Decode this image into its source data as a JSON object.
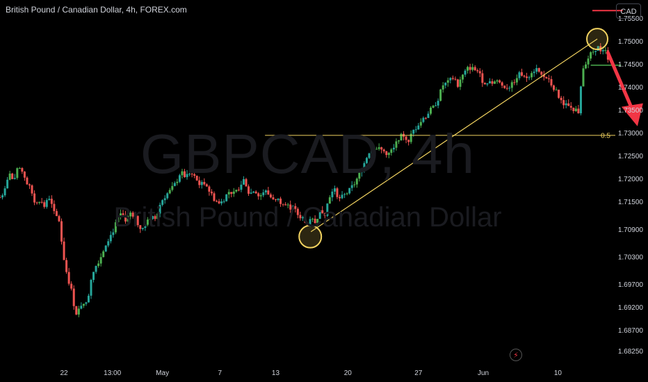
{
  "header": {
    "title": "British Pound / Canadian Dollar, 4h, FOREX.com",
    "currency_badge": "CAD"
  },
  "watermark": {
    "symbol": "GBPCAD, 4h",
    "name": "British Pound / Canadian Dollar"
  },
  "icons": {
    "alert": "lightning-icon"
  },
  "colors": {
    "up": "#26a69a",
    "up_bright": "#4caf50",
    "down": "#ef5350",
    "fib": "#f2d360",
    "arrow": "#f23645",
    "background": "#000000"
  },
  "chart_data": {
    "type": "candlestick",
    "symbol": "GBPCAD",
    "timeframe": "4h",
    "ylim": [
      1.68,
      1.759
    ],
    "y_ticks": [
      "1.75500",
      "1.75000",
      "1.74500",
      "1.74000",
      "1.73500",
      "1.73000",
      "1.72500",
      "1.72000",
      "1.71500",
      "1.70900",
      "1.70300",
      "1.69700",
      "1.69200",
      "1.68700",
      "1.68250"
    ],
    "x_ticks": [
      "22",
      "13:00",
      "May",
      "7",
      "13",
      "20",
      "27",
      "Jun",
      "10"
    ],
    "price_path": [
      [
        0,
        1.716
      ],
      [
        6,
        1.7175
      ],
      [
        12,
        1.7215
      ],
      [
        17,
        1.719
      ],
      [
        22,
        1.7225
      ],
      [
        28,
        1.7215
      ],
      [
        33,
        1.719
      ],
      [
        38,
        1.7175
      ],
      [
        42,
        1.715
      ],
      [
        48,
        1.7155
      ],
      [
        54,
        1.714
      ],
      [
        60,
        1.716
      ],
      [
        66,
        1.7125
      ],
      [
        72,
        1.711
      ],
      [
        77,
        1.7035
      ],
      [
        82,
        1.699
      ],
      [
        88,
        1.695
      ],
      [
        92,
        1.6905
      ],
      [
        96,
        1.6915
      ],
      [
        101,
        1.6935
      ],
      [
        106,
        1.6925
      ],
      [
        112,
        1.6995
      ],
      [
        118,
        1.7015
      ],
      [
        124,
        1.7035
      ],
      [
        130,
        1.7065
      ],
      [
        136,
        1.708
      ],
      [
        142,
        1.7105
      ],
      [
        148,
        1.7125
      ],
      [
        154,
        1.711
      ],
      [
        160,
        1.713
      ],
      [
        166,
        1.711
      ],
      [
        172,
        1.709
      ],
      [
        178,
        1.71
      ],
      [
        184,
        1.712
      ],
      [
        190,
        1.7115
      ],
      [
        196,
        1.715
      ],
      [
        202,
        1.7165
      ],
      [
        208,
        1.7175
      ],
      [
        214,
        1.719
      ],
      [
        220,
        1.7215
      ],
      [
        226,
        1.7205
      ],
      [
        232,
        1.7215
      ],
      [
        238,
        1.7205
      ],
      [
        244,
        1.7185
      ],
      [
        250,
        1.7195
      ],
      [
        256,
        1.717
      ],
      [
        262,
        1.7155
      ],
      [
        268,
        1.7145
      ],
      [
        274,
        1.716
      ],
      [
        280,
        1.7175
      ],
      [
        286,
        1.7165
      ],
      [
        292,
        1.7185
      ],
      [
        298,
        1.72
      ],
      [
        304,
        1.7165
      ],
      [
        310,
        1.718
      ],
      [
        316,
        1.716
      ],
      [
        322,
        1.7175
      ],
      [
        328,
        1.7165
      ],
      [
        334,
        1.715
      ],
      [
        340,
        1.7155
      ],
      [
        346,
        1.7145
      ],
      [
        352,
        1.714
      ],
      [
        358,
        1.7135
      ],
      [
        364,
        1.712
      ],
      [
        370,
        1.7115
      ],
      [
        374,
        1.7095
      ],
      [
        379,
        1.711
      ],
      [
        384,
        1.7105
      ],
      [
        390,
        1.713
      ],
      [
        396,
        1.7125
      ],
      [
        402,
        1.7165
      ],
      [
        408,
        1.7175
      ],
      [
        414,
        1.7155
      ],
      [
        420,
        1.7165
      ],
      [
        426,
        1.7175
      ],
      [
        432,
        1.719
      ],
      [
        438,
        1.721
      ],
      [
        444,
        1.7235
      ],
      [
        450,
        1.726
      ],
      [
        456,
        1.727
      ],
      [
        462,
        1.7265
      ],
      [
        468,
        1.726
      ],
      [
        474,
        1.7255
      ],
      [
        480,
        1.7265
      ],
      [
        486,
        1.729
      ],
      [
        492,
        1.7295
      ],
      [
        498,
        1.7285
      ],
      [
        504,
        1.7305
      ],
      [
        510,
        1.732
      ],
      [
        516,
        1.733
      ],
      [
        522,
        1.7345
      ],
      [
        528,
        1.7355
      ],
      [
        534,
        1.7375
      ],
      [
        540,
        1.7405
      ],
      [
        546,
        1.741
      ],
      [
        552,
        1.742
      ],
      [
        558,
        1.7405
      ],
      [
        564,
        1.7425
      ],
      [
        570,
        1.744
      ],
      [
        576,
        1.7445
      ],
      [
        582,
        1.7435
      ],
      [
        588,
        1.7415
      ],
      [
        594,
        1.7405
      ],
      [
        600,
        1.741
      ],
      [
        606,
        1.7415
      ],
      [
        612,
        1.7405
      ],
      [
        618,
        1.74
      ],
      [
        624,
        1.7405
      ],
      [
        630,
        1.7425
      ],
      [
        636,
        1.743
      ],
      [
        642,
        1.742
      ],
      [
        648,
        1.7435
      ],
      [
        654,
        1.744
      ],
      [
        660,
        1.7425
      ],
      [
        666,
        1.742
      ],
      [
        672,
        1.7405
      ],
      [
        678,
        1.739
      ],
      [
        682,
        1.7375
      ],
      [
        686,
        1.736
      ],
      [
        692,
        1.736
      ],
      [
        697,
        1.7355
      ],
      [
        702,
        1.735
      ],
      [
        706,
        1.7345
      ],
      [
        709,
        1.7435
      ],
      [
        714,
        1.7455
      ],
      [
        719,
        1.747
      ],
      [
        724,
        1.748
      ],
      [
        728,
        1.749
      ],
      [
        732,
        1.7475
      ],
      [
        736,
        1.7485
      ],
      [
        741,
        1.7465
      ]
    ],
    "annotations": {
      "fib_level": {
        "label": "0.5",
        "price": 1.7295
      },
      "trend_line": {
        "from_price": 1.7085,
        "to_price": 1.7505
      },
      "circle_low_price": 1.7085,
      "circle_high_price": 1.7505,
      "upper_red_line_price": 1.7567,
      "lower_green_line_price": 1.7448,
      "arrow_end_price": 1.7315
    }
  }
}
